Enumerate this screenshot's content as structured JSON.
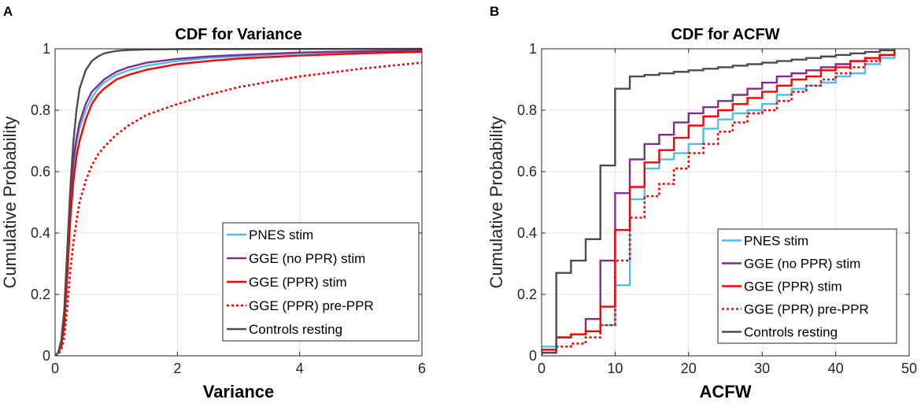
{
  "panels": [
    "A",
    "B"
  ],
  "colors": {
    "pnes": "#4dbeee",
    "gge_noppr": "#7e2f8e",
    "gge_ppr": "#ff0000",
    "gge_preppr": "#ff0000",
    "controls": "#4d4d4d",
    "grid": "#e3e3e3",
    "axis": "#262626"
  },
  "chart_data": [
    {
      "type": "line",
      "panel": "A",
      "title": "CDF for Variance",
      "xlabel": "Variance",
      "ylabel": "Cumulative Probability",
      "xlim": [
        0,
        6
      ],
      "ylim": [
        0,
        1
      ],
      "xticks": [
        0,
        2,
        4,
        6
      ],
      "xtick_labels": [
        "0",
        "2",
        "4",
        "6"
      ],
      "yticks": [
        0,
        0.2,
        0.4,
        0.6,
        0.8,
        1
      ],
      "ytick_labels": [
        "0",
        "0.2",
        "0.4",
        "0.6",
        "0.8",
        "1"
      ],
      "grid": true,
      "legend_position": "bottom-right",
      "series": [
        {
          "name": "PNES stim",
          "color": "#4dbeee",
          "style": "solid",
          "x": [
            0,
            0.05,
            0.1,
            0.15,
            0.2,
            0.25,
            0.3,
            0.35,
            0.4,
            0.5,
            0.6,
            0.7,
            0.8,
            1.0,
            1.2,
            1.5,
            2.0,
            2.5,
            3.0,
            4.0,
            5.0,
            6.0
          ],
          "y": [
            0,
            0.01,
            0.04,
            0.12,
            0.3,
            0.5,
            0.62,
            0.69,
            0.74,
            0.8,
            0.84,
            0.87,
            0.89,
            0.915,
            0.93,
            0.945,
            0.96,
            0.97,
            0.975,
            0.985,
            0.99,
            0.993
          ]
        },
        {
          "name": "GGE (no PPR) stim",
          "color": "#7e2f8e",
          "style": "solid",
          "x": [
            0,
            0.05,
            0.1,
            0.15,
            0.2,
            0.25,
            0.3,
            0.35,
            0.4,
            0.5,
            0.6,
            0.7,
            0.8,
            1.0,
            1.2,
            1.5,
            2.0,
            2.5,
            3.0,
            4.0,
            5.0,
            6.0
          ],
          "y": [
            0,
            0.01,
            0.04,
            0.13,
            0.32,
            0.52,
            0.64,
            0.71,
            0.76,
            0.82,
            0.86,
            0.88,
            0.9,
            0.925,
            0.94,
            0.955,
            0.967,
            0.975,
            0.98,
            0.988,
            0.992,
            0.995
          ]
        },
        {
          "name": "GGE (PPR) stim",
          "color": "#ff0000",
          "style": "solid",
          "x": [
            0,
            0.05,
            0.1,
            0.15,
            0.2,
            0.25,
            0.3,
            0.35,
            0.4,
            0.5,
            0.6,
            0.7,
            0.8,
            1.0,
            1.2,
            1.5,
            2.0,
            2.5,
            3.0,
            4.0,
            5.0,
            6.0
          ],
          "y": [
            0,
            0.01,
            0.03,
            0.1,
            0.26,
            0.45,
            0.57,
            0.65,
            0.7,
            0.77,
            0.82,
            0.85,
            0.87,
            0.9,
            0.915,
            0.932,
            0.95,
            0.96,
            0.968,
            0.978,
            0.985,
            0.99
          ]
        },
        {
          "name": "GGE (PPR) pre-PPR",
          "color": "#ff0000",
          "style": "dotted",
          "x": [
            0,
            0.05,
            0.1,
            0.15,
            0.2,
            0.25,
            0.3,
            0.35,
            0.4,
            0.5,
            0.6,
            0.7,
            0.8,
            1.0,
            1.2,
            1.5,
            2.0,
            2.5,
            3.0,
            4.0,
            5.0,
            6.0
          ],
          "y": [
            0,
            0.005,
            0.02,
            0.06,
            0.16,
            0.28,
            0.37,
            0.44,
            0.5,
            0.57,
            0.62,
            0.655,
            0.68,
            0.72,
            0.75,
            0.785,
            0.82,
            0.85,
            0.875,
            0.91,
            0.935,
            0.955
          ]
        },
        {
          "name": "Controls resting",
          "color": "#4d4d4d",
          "style": "solid",
          "x": [
            0,
            0.05,
            0.1,
            0.15,
            0.2,
            0.25,
            0.3,
            0.35,
            0.4,
            0.5,
            0.6,
            0.7,
            0.8,
            1.0,
            1.2,
            1.5,
            2.0,
            6.0
          ],
          "y": [
            0,
            0.01,
            0.05,
            0.15,
            0.35,
            0.55,
            0.7,
            0.8,
            0.87,
            0.93,
            0.96,
            0.975,
            0.985,
            0.993,
            0.996,
            0.998,
            0.999,
            1.0
          ]
        }
      ]
    },
    {
      "type": "line",
      "panel": "B",
      "title": "CDF for ACFW",
      "xlabel": "ACFW",
      "ylabel": "Cumulative Probability",
      "xlim": [
        0,
        50
      ],
      "ylim": [
        0,
        1
      ],
      "xticks": [
        0,
        10,
        20,
        30,
        40,
        50
      ],
      "xtick_labels": [
        "0",
        "10",
        "20",
        "30",
        "40",
        "50"
      ],
      "yticks": [
        0,
        0.2,
        0.4,
        0.6,
        0.8,
        1
      ],
      "ytick_labels": [
        "0",
        "0.2",
        "0.4",
        "0.6",
        "0.8",
        "1"
      ],
      "grid": true,
      "legend_position": "bottom-right",
      "series": [
        {
          "name": "PNES stim",
          "color": "#4dbeee",
          "style": "solid",
          "step": true,
          "x": [
            0,
            2,
            4,
            6,
            8,
            10,
            12,
            14,
            16,
            18,
            20,
            22,
            24,
            26,
            28,
            30,
            32,
            34,
            36,
            38,
            40,
            42,
            44,
            46,
            48
          ],
          "y": [
            0.03,
            0.06,
            0.07,
            0.08,
            0.1,
            0.23,
            0.51,
            0.61,
            0.64,
            0.66,
            0.69,
            0.74,
            0.77,
            0.79,
            0.8,
            0.82,
            0.85,
            0.87,
            0.88,
            0.89,
            0.91,
            0.92,
            0.95,
            0.97,
            1.0
          ]
        },
        {
          "name": "GGE (no PPR) stim",
          "color": "#7e2f8e",
          "style": "solid",
          "step": true,
          "x": [
            0,
            2,
            4,
            6,
            8,
            10,
            12,
            14,
            16,
            18,
            20,
            22,
            24,
            26,
            28,
            30,
            32,
            34,
            36,
            38,
            40,
            42,
            44,
            46,
            48
          ],
          "y": [
            0.02,
            0.06,
            0.07,
            0.12,
            0.31,
            0.53,
            0.64,
            0.69,
            0.72,
            0.76,
            0.79,
            0.81,
            0.83,
            0.85,
            0.87,
            0.89,
            0.91,
            0.92,
            0.93,
            0.94,
            0.95,
            0.96,
            0.97,
            0.98,
            1.0
          ]
        },
        {
          "name": "GGE (PPR) stim",
          "color": "#ff0000",
          "style": "solid",
          "step": true,
          "x": [
            0,
            2,
            4,
            6,
            8,
            10,
            12,
            14,
            16,
            18,
            20,
            22,
            24,
            26,
            28,
            30,
            32,
            34,
            36,
            38,
            40,
            42,
            44,
            46,
            48
          ],
          "y": [
            0.02,
            0.06,
            0.07,
            0.08,
            0.16,
            0.41,
            0.55,
            0.63,
            0.67,
            0.71,
            0.75,
            0.78,
            0.8,
            0.82,
            0.84,
            0.86,
            0.88,
            0.9,
            0.91,
            0.93,
            0.94,
            0.96,
            0.97,
            0.98,
            1.0
          ]
        },
        {
          "name": "GGE (PPR) pre-PPR",
          "color": "#ff0000",
          "style": "dotted",
          "step": true,
          "x": [
            0,
            2,
            4,
            6,
            8,
            10,
            12,
            14,
            16,
            18,
            20,
            22,
            24,
            26,
            28,
            30,
            32,
            34,
            36,
            38,
            40,
            42,
            44,
            46,
            48
          ],
          "y": [
            0.01,
            0.03,
            0.04,
            0.06,
            0.1,
            0.31,
            0.45,
            0.52,
            0.56,
            0.61,
            0.66,
            0.69,
            0.73,
            0.76,
            0.79,
            0.8,
            0.83,
            0.86,
            0.88,
            0.9,
            0.92,
            0.94,
            0.96,
            0.98,
            1.0
          ]
        },
        {
          "name": "Controls resting",
          "color": "#4d4d4d",
          "style": "solid",
          "step": true,
          "x": [
            0,
            2,
            4,
            6,
            8,
            10,
            12,
            14,
            16,
            18,
            20,
            22,
            24,
            26,
            28,
            30,
            32,
            34,
            36,
            38,
            40,
            42,
            44,
            46,
            48
          ],
          "y": [
            0.01,
            0.27,
            0.31,
            0.38,
            0.62,
            0.87,
            0.91,
            0.915,
            0.92,
            0.925,
            0.93,
            0.935,
            0.94,
            0.945,
            0.95,
            0.955,
            0.96,
            0.965,
            0.97,
            0.975,
            0.98,
            0.985,
            0.99,
            0.995,
            1.0
          ]
        }
      ]
    }
  ]
}
